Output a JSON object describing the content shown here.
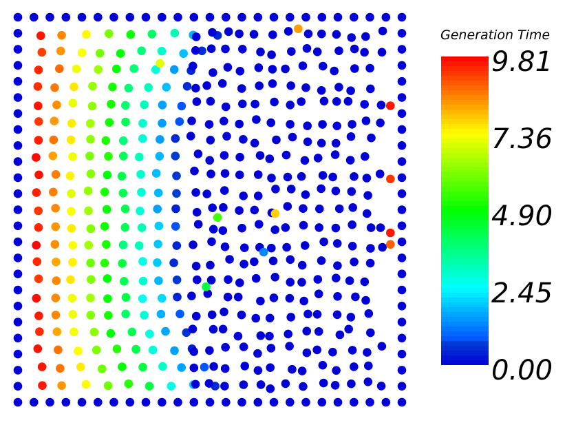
{
  "chart_data": {
    "type": "scatter",
    "title": "",
    "xlabel": "",
    "ylabel": "",
    "xlim": [
      0,
      1
    ],
    "ylim": [
      0,
      1
    ],
    "colorbar": {
      "title": "Generation Time",
      "range": [
        0.0,
        9.81
      ],
      "colormap": "rainbow (blue-cyan-green-yellow-red)",
      "tick_labels": [
        "9.81",
        "7.36",
        "4.90",
        "2.45",
        "0.00"
      ]
    },
    "boundary_points": {
      "description_value": 0.0,
      "count_per_side": 25
    },
    "interior_fronts": [
      {
        "x": 0.05,
        "value": 9.5
      },
      {
        "x": 0.095,
        "value": 8.5
      },
      {
        "x": 0.14,
        "value": 7.3
      },
      {
        "x": 0.185,
        "value": 6.2
      },
      {
        "x": 0.23,
        "value": 5.1
      },
      {
        "x": 0.275,
        "value": 4.0
      },
      {
        "x": 0.32,
        "value": 2.9
      },
      {
        "x": 0.365,
        "value": 1.8
      },
      {
        "x": 0.41,
        "value": 0.6
      }
    ],
    "outliers": [
      {
        "x": 0.73,
        "y": 0.97,
        "value": 8.3
      },
      {
        "x": 0.97,
        "y": 0.77,
        "value": 9.6
      },
      {
        "x": 0.97,
        "y": 0.58,
        "value": 9.3
      },
      {
        "x": 0.97,
        "y": 0.44,
        "value": 9.6
      },
      {
        "x": 0.97,
        "y": 0.41,
        "value": 8.9
      },
      {
        "x": 0.67,
        "y": 0.49,
        "value": 7.8
      },
      {
        "x": 0.52,
        "y": 0.48,
        "value": 5.5
      },
      {
        "x": 0.64,
        "y": 0.39,
        "value": 1.3
      },
      {
        "x": 0.49,
        "y": 0.3,
        "value": 4.3
      },
      {
        "x": 0.37,
        "y": 0.88,
        "value": 7.1
      }
    ],
    "background_value": 0.0,
    "grid": false,
    "legend": "right"
  }
}
